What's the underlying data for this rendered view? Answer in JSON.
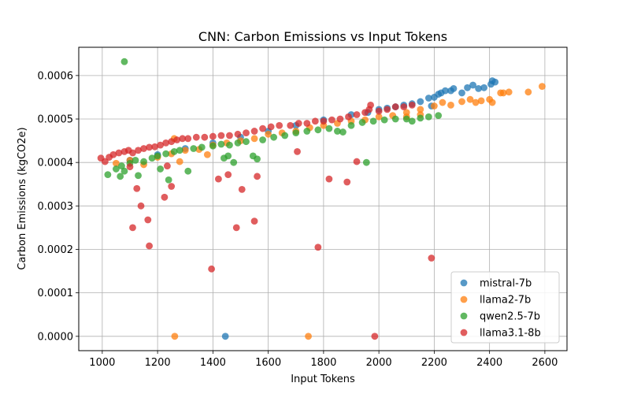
{
  "chart_data": {
    "type": "scatter",
    "title": "CNN: Carbon Emissions vs Input Tokens",
    "xlabel": "Input Tokens",
    "ylabel": "Carbon Emissions (kgCO2e)",
    "xlim": [
      915,
      2680
    ],
    "ylim": [
      -3.3e-05,
      0.000665
    ],
    "xticks": [
      1000,
      1200,
      1400,
      1600,
      1800,
      2000,
      2200,
      2400,
      2600
    ],
    "xtick_labels": [
      "1000",
      "1200",
      "1400",
      "1600",
      "1800",
      "2000",
      "2200",
      "2400",
      "2600"
    ],
    "yticks": [
      0,
      0.0001,
      0.0002,
      0.0003,
      0.0004,
      0.0005,
      0.0006
    ],
    "ytick_labels": [
      "0.0000",
      "0.0001",
      "0.0002",
      "0.0003",
      "0.0004",
      "0.0005",
      "0.0006"
    ],
    "grid": true,
    "legend_position": "lower-right",
    "series": [
      {
        "name": "mistral-7b",
        "color": "#1f77b4",
        "points": [
          [
            1100,
            0.000405
          ],
          [
            1200,
            0.000418
          ],
          [
            1300,
            0.000432
          ],
          [
            1400,
            0.000445
          ],
          [
            1500,
            0.000458
          ],
          [
            1600,
            0.000472
          ],
          [
            1700,
            0.000485
          ],
          [
            1800,
            0.000498
          ],
          [
            1900,
            0.00051
          ],
          [
            1960,
            0.000515
          ],
          [
            2000,
            0.000522
          ],
          [
            2030,
            0.000525
          ],
          [
            2060,
            0.000528
          ],
          [
            2090,
            0.000532
          ],
          [
            2120,
            0.000535
          ],
          [
            2150,
            0.00054
          ],
          [
            2180,
            0.000548
          ],
          [
            2200,
            0.00055
          ],
          [
            2215,
            0.000557
          ],
          [
            2225,
            0.00056
          ],
          [
            2240,
            0.000565
          ],
          [
            2260,
            0.000565
          ],
          [
            2270,
            0.00057
          ],
          [
            2300,
            0.00056
          ],
          [
            2320,
            0.000572
          ],
          [
            2340,
            0.000578
          ],
          [
            2360,
            0.00057
          ],
          [
            2380,
            0.000572
          ],
          [
            2405,
            0.00058
          ],
          [
            2410,
            0.000588
          ],
          [
            2420,
            0.000585
          ],
          [
            2190,
            0.00053
          ],
          [
            1445,
            0.0
          ]
        ]
      },
      {
        "name": "llama2-7b",
        "color": "#ff7f0e",
        "points": [
          [
            1050,
            0.000398
          ],
          [
            1100,
            0.000405
          ],
          [
            1150,
            0.000395
          ],
          [
            1200,
            0.000412
          ],
          [
            1250,
            0.00042
          ],
          [
            1260,
            0.000455
          ],
          [
            1280,
            0.000402
          ],
          [
            1300,
            0.000428
          ],
          [
            1350,
            0.00043
          ],
          [
            1380,
            0.000418
          ],
          [
            1400,
            0.00044
          ],
          [
            1450,
            0.000445
          ],
          [
            1500,
            0.00045
          ],
          [
            1550,
            0.000455
          ],
          [
            1600,
            0.000465
          ],
          [
            1650,
            0.000468
          ],
          [
            1700,
            0.000472
          ],
          [
            1750,
            0.00048
          ],
          [
            1800,
            0.000485
          ],
          [
            1850,
            0.00049
          ],
          [
            1900,
            0.000495
          ],
          [
            1950,
            0.000498
          ],
          [
            2000,
            0.000505
          ],
          [
            2050,
            0.000508
          ],
          [
            2100,
            0.000515
          ],
          [
            2150,
            0.000522
          ],
          [
            2200,
            0.00053
          ],
          [
            2230,
            0.000538
          ],
          [
            2260,
            0.000532
          ],
          [
            2300,
            0.00054
          ],
          [
            2330,
            0.000545
          ],
          [
            2350,
            0.000538
          ],
          [
            2370,
            0.000542
          ],
          [
            2400,
            0.000545
          ],
          [
            2410,
            0.000538
          ],
          [
            2440,
            0.00056
          ],
          [
            2450,
            0.00056
          ],
          [
            2470,
            0.000562
          ],
          [
            2540,
            0.000562
          ],
          [
            2590,
            0.000575
          ],
          [
            2100,
            0.000505
          ],
          [
            2150,
            0.00051
          ],
          [
            1262,
            0.0
          ],
          [
            1745,
            0.0
          ]
        ]
      },
      {
        "name": "qwen2.5-7b",
        "color": "#2ca02c",
        "points": [
          [
            1020,
            0.000372
          ],
          [
            1050,
            0.000385
          ],
          [
            1065,
            0.000368
          ],
          [
            1070,
            0.000392
          ],
          [
            1080,
            0.00038
          ],
          [
            1100,
            0.000398
          ],
          [
            1120,
            0.000405
          ],
          [
            1130,
            0.00037
          ],
          [
            1150,
            0.000402
          ],
          [
            1180,
            0.00041
          ],
          [
            1200,
            0.000415
          ],
          [
            1210,
            0.000385
          ],
          [
            1230,
            0.00042
          ],
          [
            1240,
            0.00036
          ],
          [
            1260,
            0.000425
          ],
          [
            1280,
            0.000428
          ],
          [
            1310,
            0.00038
          ],
          [
            1330,
            0.000432
          ],
          [
            1360,
            0.000435
          ],
          [
            1400,
            0.000438
          ],
          [
            1430,
            0.000442
          ],
          [
            1440,
            0.00041
          ],
          [
            1455,
            0.000415
          ],
          [
            1460,
            0.00044
          ],
          [
            1475,
            0.0004
          ],
          [
            1490,
            0.000445
          ],
          [
            1520,
            0.000448
          ],
          [
            1545,
            0.000415
          ],
          [
            1560,
            0.000408
          ],
          [
            1580,
            0.000452
          ],
          [
            1620,
            0.000458
          ],
          [
            1660,
            0.000462
          ],
          [
            1700,
            0.000468
          ],
          [
            1740,
            0.000472
          ],
          [
            1780,
            0.000475
          ],
          [
            1820,
            0.000478
          ],
          [
            1850,
            0.000472
          ],
          [
            1870,
            0.00047
          ],
          [
            1900,
            0.000485
          ],
          [
            1940,
            0.000492
          ],
          [
            1955,
            0.0004
          ],
          [
            1980,
            0.000495
          ],
          [
            2020,
            0.000498
          ],
          [
            2060,
            0.0005
          ],
          [
            2100,
            0.0005
          ],
          [
            2120,
            0.000495
          ],
          [
            2150,
            0.000502
          ],
          [
            2180,
            0.000505
          ],
          [
            2215,
            0.000508
          ],
          [
            1080,
            0.000632
          ]
        ]
      },
      {
        "name": "llama3.1-8b",
        "color": "#d62728",
        "points": [
          [
            995,
            0.00041
          ],
          [
            1010,
            0.000402
          ],
          [
            1025,
            0.000412
          ],
          [
            1040,
            0.000418
          ],
          [
            1060,
            0.000422
          ],
          [
            1080,
            0.000425
          ],
          [
            1095,
            0.000428
          ],
          [
            1100,
            0.00039
          ],
          [
            1110,
            0.000422
          ],
          [
            1130,
            0.000428
          ],
          [
            1150,
            0.000432
          ],
          [
            1170,
            0.000435
          ],
          [
            1190,
            0.000436
          ],
          [
            1210,
            0.00044
          ],
          [
            1230,
            0.000445
          ],
          [
            1250,
            0.000448
          ],
          [
            1270,
            0.000452
          ],
          [
            1290,
            0.000455
          ],
          [
            1310,
            0.000455
          ],
          [
            1340,
            0.000458
          ],
          [
            1370,
            0.000458
          ],
          [
            1400,
            0.00046
          ],
          [
            1430,
            0.000462
          ],
          [
            1460,
            0.000462
          ],
          [
            1490,
            0.000465
          ],
          [
            1520,
            0.000468
          ],
          [
            1550,
            0.000472
          ],
          [
            1580,
            0.000478
          ],
          [
            1610,
            0.000482
          ],
          [
            1640,
            0.000485
          ],
          [
            1680,
            0.000485
          ],
          [
            1710,
            0.00049
          ],
          [
            1740,
            0.00049
          ],
          [
            1770,
            0.000495
          ],
          [
            1800,
            0.000495
          ],
          [
            1830,
            0.000498
          ],
          [
            1860,
            0.0005
          ],
          [
            1890,
            0.000505
          ],
          [
            1920,
            0.00051
          ],
          [
            1950,
            0.000515
          ],
          [
            1965,
            0.000522
          ],
          [
            1970,
            0.000532
          ],
          [
            2000,
            0.000518
          ],
          [
            2030,
            0.000522
          ],
          [
            2060,
            0.000528
          ],
          [
            2090,
            0.000528
          ],
          [
            2120,
            0.000532
          ],
          [
            1110,
            0.00025
          ],
          [
            1125,
            0.00034
          ],
          [
            1140,
            0.0003
          ],
          [
            1165,
            0.000268
          ],
          [
            1170,
            0.000208
          ],
          [
            1225,
            0.00032
          ],
          [
            1235,
            0.000392
          ],
          [
            1250,
            0.000345
          ],
          [
            1395,
            0.000155
          ],
          [
            1420,
            0.000362
          ],
          [
            1455,
            0.000372
          ],
          [
            1485,
            0.00025
          ],
          [
            1505,
            0.000338
          ],
          [
            1550,
            0.000265
          ],
          [
            1560,
            0.000368
          ],
          [
            1705,
            0.000425
          ],
          [
            1780,
            0.000205
          ],
          [
            1820,
            0.000362
          ],
          [
            1885,
            0.000355
          ],
          [
            1920,
            0.000402
          ],
          [
            1985,
            0.0
          ],
          [
            2190,
            0.00018
          ]
        ]
      }
    ]
  }
}
